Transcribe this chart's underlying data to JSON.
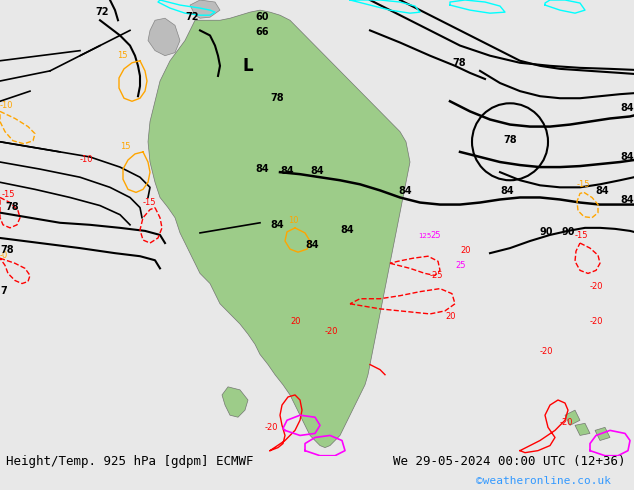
{
  "title_left": "Height/Temp. 925 hPa [gdpm] ECMWF",
  "title_right": "We 29-05-2024 00:00 UTC (12+36)",
  "credit": "©weatheronline.co.uk",
  "bg_color": "#e8e8e8",
  "map_bg": "#ffffff",
  "figsize": [
    6.34,
    4.9
  ],
  "dpi": 100
}
